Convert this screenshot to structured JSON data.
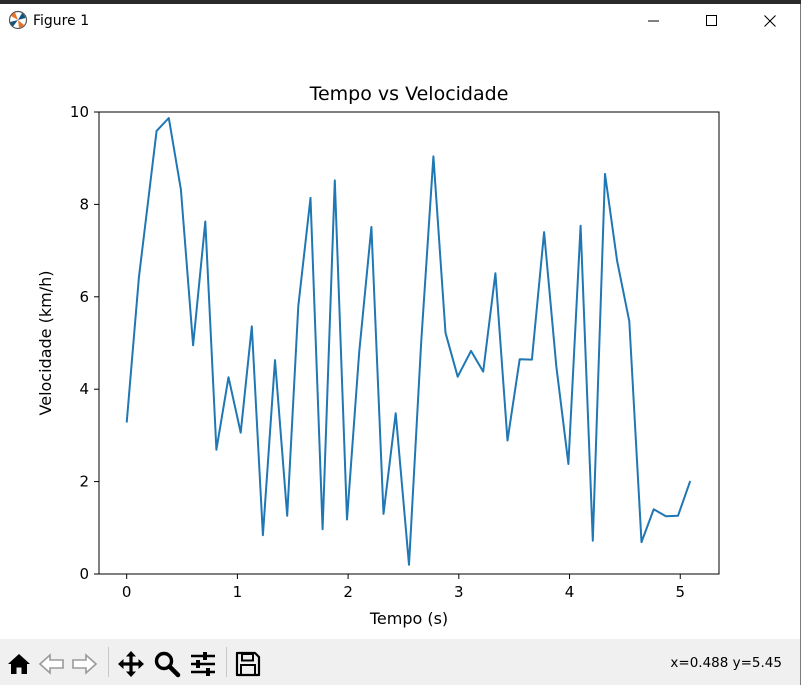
{
  "window": {
    "title": "Figure 1",
    "icon": "matplotlib-icon",
    "controls": [
      "minimize-icon",
      "maximize-icon",
      "close-icon"
    ]
  },
  "toolbar": {
    "buttons": [
      "home-icon",
      "back-icon",
      "forward-icon",
      "pan-icon",
      "zoom-icon",
      "configure-subplots-icon",
      "save-icon"
    ],
    "coords": "x=0.488 y=5.45"
  },
  "chart_data": {
    "type": "line",
    "title": "Tempo vs Velocidade",
    "xlabel": "Tempo (s)",
    "ylabel": "Velocidade (km/h)",
    "xlim": [
      -0.25,
      5.35
    ],
    "ylim": [
      0,
      10
    ],
    "xticks": [
      0,
      1,
      2,
      3,
      4,
      5
    ],
    "yticks": [
      0,
      2,
      4,
      6,
      8,
      10
    ],
    "grid": false,
    "line_color": "#1f77b4",
    "series": [
      {
        "x": [
          0.0,
          0.11,
          0.27,
          0.38,
          0.49,
          0.6,
          0.71,
          0.81,
          0.92,
          1.03,
          1.13,
          1.23,
          1.34,
          1.45,
          1.55,
          1.66,
          1.77,
          1.88,
          1.99,
          2.1,
          2.21,
          2.32,
          2.43,
          2.55,
          2.66,
          2.77,
          2.88,
          2.99,
          3.11,
          3.22,
          3.33,
          3.44,
          3.55,
          3.66,
          3.77,
          3.88,
          3.99,
          4.1,
          4.21,
          4.32,
          4.43,
          4.54,
          4.65,
          4.76,
          4.87,
          4.98,
          5.09
        ],
        "y": [
          3.28,
          6.42,
          9.59,
          9.87,
          8.32,
          4.95,
          7.63,
          2.69,
          4.26,
          3.06,
          5.36,
          0.84,
          4.63,
          1.26,
          5.8,
          8.14,
          0.97,
          8.52,
          1.18,
          4.8,
          7.51,
          1.3,
          3.48,
          0.2,
          5.02,
          9.04,
          5.22,
          4.27,
          4.83,
          4.38,
          6.51,
          2.89,
          4.65,
          4.64,
          7.4,
          4.5,
          2.38,
          7.54,
          0.72,
          8.66,
          6.78,
          5.47,
          0.69,
          1.4,
          1.25,
          1.26,
          2.01
        ]
      }
    ]
  }
}
